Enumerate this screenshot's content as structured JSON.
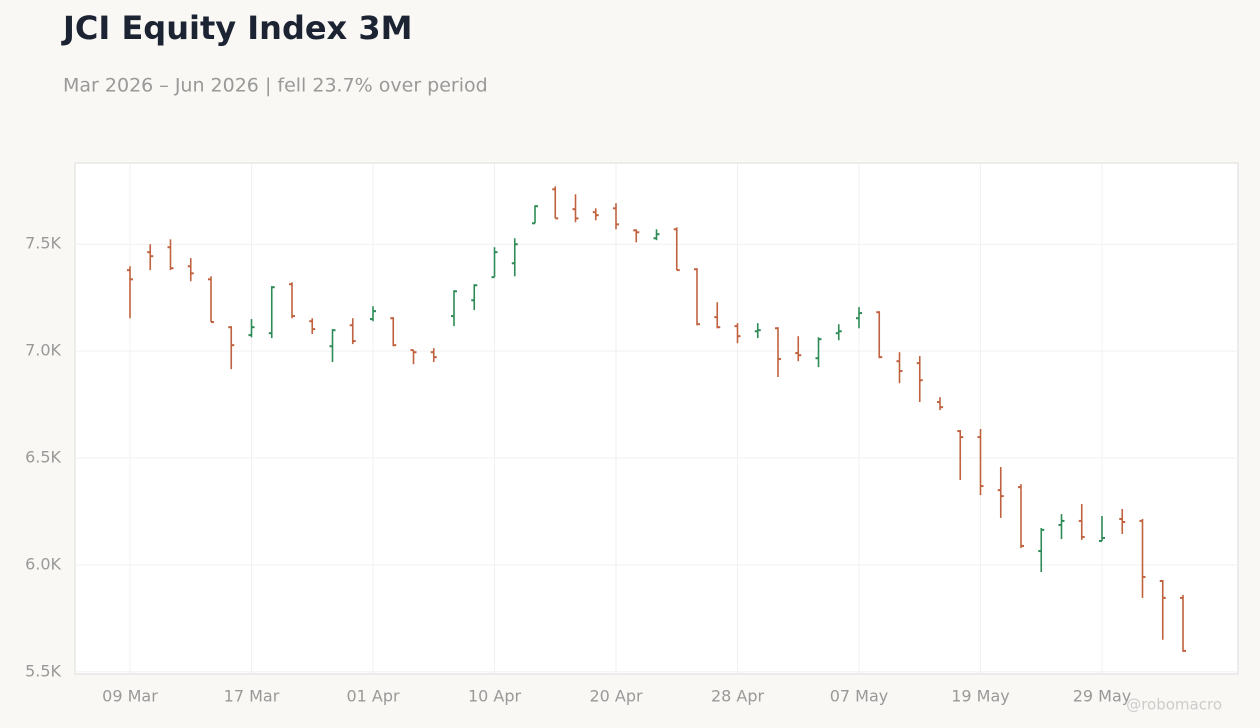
{
  "chart_data": {
    "type": "ohlc",
    "title": "JCI Equity Index 3M",
    "subtitle": "Mar 2026 – Jun 2026 | fell 23.7% over period",
    "watermark": "@robomacro",
    "categories": [
      "09 Mar",
      null,
      null,
      null,
      null,
      null,
      "17 Mar",
      null,
      null,
      null,
      null,
      null,
      "01 Apr",
      null,
      null,
      null,
      null,
      null,
      "10 Apr",
      null,
      null,
      null,
      null,
      null,
      "20 Apr",
      null,
      null,
      null,
      null,
      null,
      "28 Apr",
      null,
      null,
      null,
      null,
      null,
      "07 May",
      null,
      null,
      null,
      null,
      null,
      "19 May",
      null,
      null,
      null,
      null,
      null,
      "29 May",
      null,
      null,
      null,
      null
    ],
    "open": [
      7379,
      7463,
      7486,
      7397,
      7336,
      7112,
      7075,
      7084,
      7313,
      7140,
      7023,
      7121,
      7150,
      7154,
      7005,
      6995,
      7164,
      7238,
      7346,
      7411,
      7598,
      7757,
      7664,
      7650,
      7668,
      7565,
      7528,
      7570,
      7383,
      7159,
      7117,
      7093,
      7107,
      6991,
      6967,
      7084,
      7154,
      7182,
      6953,
      6944,
      6762,
      6626,
      6598,
      6350,
      6364,
      6065,
      6187,
      6206,
      6112,
      6215,
      6206,
      5925,
      5846
    ],
    "high": [
      7397,
      7500,
      7523,
      7435,
      7350,
      7117,
      7150,
      7304,
      7322,
      7154,
      7103,
      7154,
      7210,
      7159,
      7005,
      7014,
      7285,
      7313,
      7486,
      7528,
      7682,
      7771,
      7734,
      7668,
      7692,
      7570,
      7570,
      7579,
      7388,
      7229,
      7131,
      7131,
      7112,
      7070,
      7065,
      7126,
      7206,
      7187,
      6995,
      6977,
      6785,
      6631,
      6636,
      6458,
      6378,
      6173,
      6238,
      6285,
      6229,
      6262,
      6215,
      5930,
      5860
    ],
    "low": [
      7154,
      7379,
      7379,
      7327,
      7136,
      6916,
      7065,
      7061,
      7154,
      7080,
      6949,
      7033,
      7140,
      7023,
      6939,
      6949,
      7117,
      7192,
      7346,
      7350,
      7598,
      7621,
      7603,
      7612,
      7570,
      7509,
      7519,
      7379,
      7121,
      7107,
      7037,
      7061,
      6879,
      6953,
      6925,
      7051,
      7107,
      6967,
      6850,
      6762,
      6724,
      6397,
      6327,
      6220,
      6079,
      5967,
      6121,
      6117,
      6112,
      6145,
      5846,
      5650,
      5594
    ],
    "close": [
      7336,
      7444,
      7388,
      7364,
      7136,
      7028,
      7112,
      7299,
      7164,
      7103,
      7098,
      7047,
      7187,
      7028,
      6995,
      6972,
      7280,
      7308,
      7463,
      7500,
      7678,
      7621,
      7621,
      7636,
      7593,
      7556,
      7547,
      7379,
      7126,
      7112,
      7070,
      7098,
      6963,
      6981,
      7056,
      7093,
      7178,
      6972,
      6907,
      6864,
      6738,
      6598,
      6369,
      6322,
      6089,
      6164,
      6206,
      6131,
      6126,
      6201,
      5944,
      5846,
      5598
    ],
    "up_color": "#2e8b57",
    "down_color": "#c0623f",
    "ylim": [
      5490,
      7880
    ],
    "yticks": [
      {
        "value": 5500,
        "label": "5.5K"
      },
      {
        "value": 6000,
        "label": "6.0K"
      },
      {
        "value": 6500,
        "label": "6.5K"
      },
      {
        "value": 7000,
        "label": "7.0K"
      },
      {
        "value": 7500,
        "label": "7.5K"
      }
    ],
    "grid": true
  }
}
